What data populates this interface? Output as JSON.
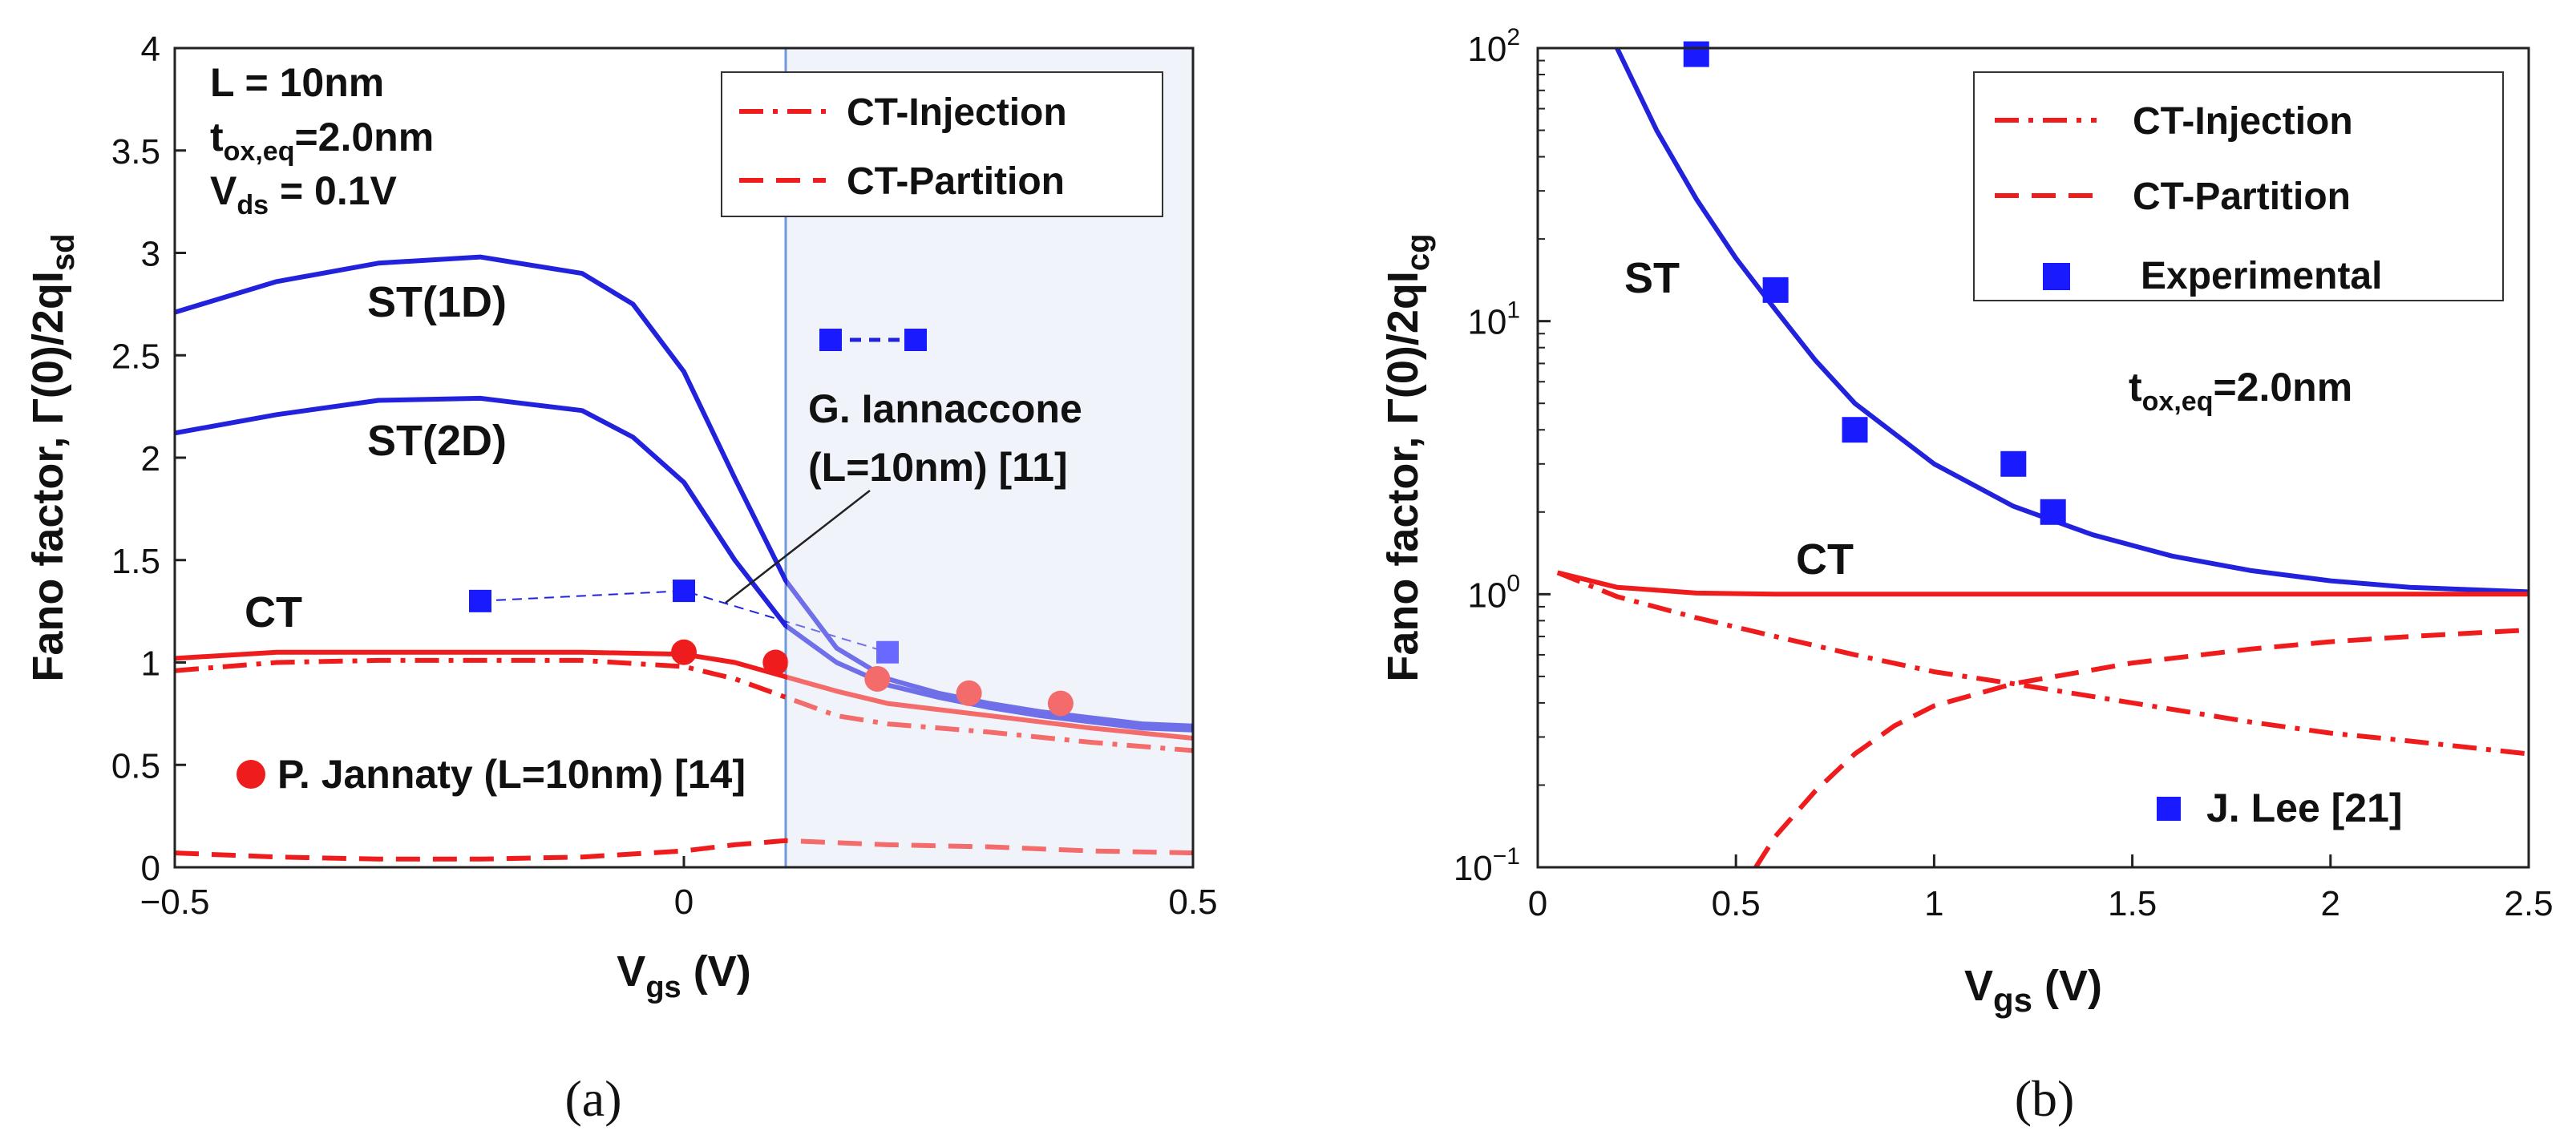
{
  "chart_data": [
    {
      "type": "line",
      "panel": "(a)",
      "xlabel": "V_gs (V)",
      "ylabel": "Fano factor, Γ(0)/2qI_sd",
      "xlim": [
        -0.5,
        0.5
      ],
      "ylim": [
        0,
        4
      ],
      "x_ticks": [
        "−0.5",
        "0",
        "0.5"
      ],
      "x_tick_values": [
        -0.5,
        0,
        0.5
      ],
      "y_ticks": [
        "0",
        "0.5",
        "1",
        "1.5",
        "2",
        "2.5",
        "3",
        "3.5",
        "4"
      ],
      "y_tick_values": [
        0,
        0.5,
        1,
        1.5,
        2,
        2.5,
        3,
        3.5,
        4
      ],
      "shaded_region_x": [
        0.1,
        0.5
      ],
      "params": {
        "L": "L = 10nm",
        "tox": "t",
        "tox_sub": "ox,eq",
        "tox_val": "=2.0nm",
        "vds": "V",
        "vds_sub": "ds",
        "vds_val": " = 0.1V"
      },
      "legend": [
        {
          "label": "CT-Injection",
          "style": "dashdot",
          "color": "#ee1c1c"
        },
        {
          "label": "CT-Partition",
          "style": "dashed",
          "color": "#ee1c1c"
        }
      ],
      "series": [
        {
          "name": "ST(1D)",
          "style": "solid",
          "color": "#2222dd",
          "x": [
            -0.5,
            -0.4,
            -0.3,
            -0.2,
            -0.1,
            -0.05,
            0,
            0.05,
            0.1,
            0.15,
            0.2,
            0.25,
            0.3,
            0.35,
            0.4,
            0.45,
            0.5
          ],
          "y": [
            2.71,
            2.86,
            2.95,
            2.98,
            2.9,
            2.75,
            2.42,
            1.9,
            1.4,
            1.07,
            0.92,
            0.85,
            0.8,
            0.76,
            0.73,
            0.7,
            0.69
          ]
        },
        {
          "name": "ST(2D)",
          "style": "solid",
          "color": "#2222dd",
          "x": [
            -0.5,
            -0.4,
            -0.3,
            -0.2,
            -0.1,
            -0.05,
            0,
            0.05,
            0.1,
            0.15,
            0.2,
            0.25,
            0.3,
            0.35,
            0.4,
            0.45,
            0.5
          ],
          "y": [
            2.12,
            2.21,
            2.28,
            2.29,
            2.23,
            2.1,
            1.88,
            1.5,
            1.18,
            1.0,
            0.89,
            0.83,
            0.78,
            0.74,
            0.71,
            0.68,
            0.67
          ]
        },
        {
          "name": "CT",
          "style": "solid",
          "color": "#ee1c1c",
          "x": [
            -0.5,
            -0.4,
            -0.3,
            -0.2,
            -0.1,
            0,
            0.05,
            0.1,
            0.15,
            0.2,
            0.3,
            0.4,
            0.5
          ],
          "y": [
            1.02,
            1.05,
            1.05,
            1.05,
            1.05,
            1.04,
            1.0,
            0.93,
            0.86,
            0.8,
            0.74,
            0.68,
            0.63
          ]
        },
        {
          "name": "CT-Injection",
          "style": "dashdot",
          "color": "#ee1c1c",
          "x": [
            -0.5,
            -0.4,
            -0.3,
            -0.2,
            -0.1,
            0,
            0.05,
            0.1,
            0.15,
            0.2,
            0.3,
            0.4,
            0.5
          ],
          "y": [
            0.96,
            1.0,
            1.01,
            1.01,
            1.01,
            0.98,
            0.92,
            0.83,
            0.74,
            0.7,
            0.66,
            0.61,
            0.57
          ]
        },
        {
          "name": "CT-Partition",
          "style": "dashed",
          "color": "#ee1c1c",
          "x": [
            -0.5,
            -0.4,
            -0.3,
            -0.2,
            -0.1,
            0,
            0.05,
            0.1,
            0.15,
            0.2,
            0.3,
            0.4,
            0.5
          ],
          "y": [
            0.07,
            0.05,
            0.04,
            0.04,
            0.05,
            0.08,
            0.11,
            0.13,
            0.12,
            0.11,
            0.1,
            0.08,
            0.07
          ]
        }
      ],
      "scatter": [
        {
          "name": "G. Iannaccone",
          "marker": "square",
          "color": "#2222dd",
          "connected": "dashed",
          "x": [
            -0.2,
            0,
            0.2
          ],
          "y": [
            1.3,
            1.35,
            1.05
          ]
        },
        {
          "name": "P. Jannaty",
          "marker": "circle",
          "color": "#ee1c1c",
          "x": [
            0,
            0.09,
            0.19,
            0.28,
            0.37
          ],
          "y": [
            1.05,
            1.0,
            0.92,
            0.85,
            0.8
          ]
        }
      ],
      "annotations": {
        "st1d": "ST(1D)",
        "st2d": "ST(2D)",
        "ct": "CT",
        "iann_line1": "G. Iannaccone",
        "iann_line2": "(L=10nm) [11]",
        "jannaty": "P. Jannaty (L=10nm) [14]"
      },
      "caption": "(a)"
    },
    {
      "type": "line",
      "panel": "(b)",
      "xlabel": "V_gs (V)",
      "ylabel": "Fano factor, Γ(0)/2qI_cg",
      "yscale": "log",
      "xlim": [
        0,
        2.5
      ],
      "ylim": [
        0.1,
        100
      ],
      "x_ticks": [
        "0",
        "0.5",
        "1",
        "1.5",
        "2",
        "2.5"
      ],
      "x_tick_values": [
        0,
        0.5,
        1,
        1.5,
        2,
        2.5
      ],
      "y_tick_values": [
        0.1,
        1,
        10,
        100
      ],
      "y_tick_bases": [
        "10",
        "10",
        "10",
        "10"
      ],
      "y_tick_exps": [
        "−1",
        "0",
        "1",
        "2"
      ],
      "legend": [
        {
          "label": "CT-Injection",
          "style": "dashdot",
          "color": "#ee1c1c"
        },
        {
          "label": "CT-Partition",
          "style": "dashed",
          "color": "#ee1c1c"
        },
        {
          "label": "Experimental",
          "style": "square",
          "color": "#2222dd"
        }
      ],
      "series": [
        {
          "name": "ST",
          "style": "solid",
          "color": "#2222dd",
          "x": [
            0.2,
            0.3,
            0.4,
            0.5,
            0.6,
            0.7,
            0.8,
            1.0,
            1.2,
            1.4,
            1.6,
            1.8,
            2.0,
            2.2,
            2.5
          ],
          "y": [
            100,
            50,
            28,
            17,
            11,
            7.2,
            5.0,
            3.0,
            2.1,
            1.65,
            1.38,
            1.22,
            1.12,
            1.06,
            1.02
          ]
        },
        {
          "name": "CT",
          "style": "solid",
          "color": "#ee1c1c",
          "x": [
            0.05,
            0.2,
            0.4,
            0.6,
            1.0,
            1.5,
            2.0,
            2.5
          ],
          "y": [
            1.2,
            1.06,
            1.01,
            1.0,
            1.0,
            1.0,
            1.0,
            1.0
          ]
        },
        {
          "name": "CT-Injection",
          "style": "dashdot",
          "color": "#ee1c1c",
          "x": [
            0.05,
            0.2,
            0.4,
            0.6,
            0.8,
            1.0,
            1.2,
            1.5,
            1.8,
            2.0,
            2.2,
            2.5
          ],
          "y": [
            1.2,
            0.98,
            0.82,
            0.7,
            0.6,
            0.52,
            0.47,
            0.4,
            0.34,
            0.31,
            0.29,
            0.26
          ]
        },
        {
          "name": "CT-Partition",
          "style": "dashed",
          "color": "#ee1c1c",
          "x": [
            0.55,
            0.6,
            0.7,
            0.8,
            0.9,
            1.0,
            1.2,
            1.5,
            1.8,
            2.0,
            2.2,
            2.5
          ],
          "y": [
            0.1,
            0.13,
            0.19,
            0.26,
            0.33,
            0.39,
            0.47,
            0.56,
            0.63,
            0.67,
            0.7,
            0.74
          ]
        }
      ],
      "scatter": [
        {
          "name": "Experimental",
          "marker": "square",
          "color": "#2222dd",
          "x": [
            0.4,
            0.6,
            0.8,
            1.2,
            1.3
          ],
          "y": [
            95,
            13,
            4.0,
            3.0,
            2.0
          ]
        }
      ],
      "annotations": {
        "st": "ST",
        "ct": "CT",
        "tox": "t",
        "tox_sub": "ox,eq",
        "tox_val": "=2.0nm",
        "source": "J. Lee [21]"
      },
      "caption": "(b)"
    }
  ]
}
